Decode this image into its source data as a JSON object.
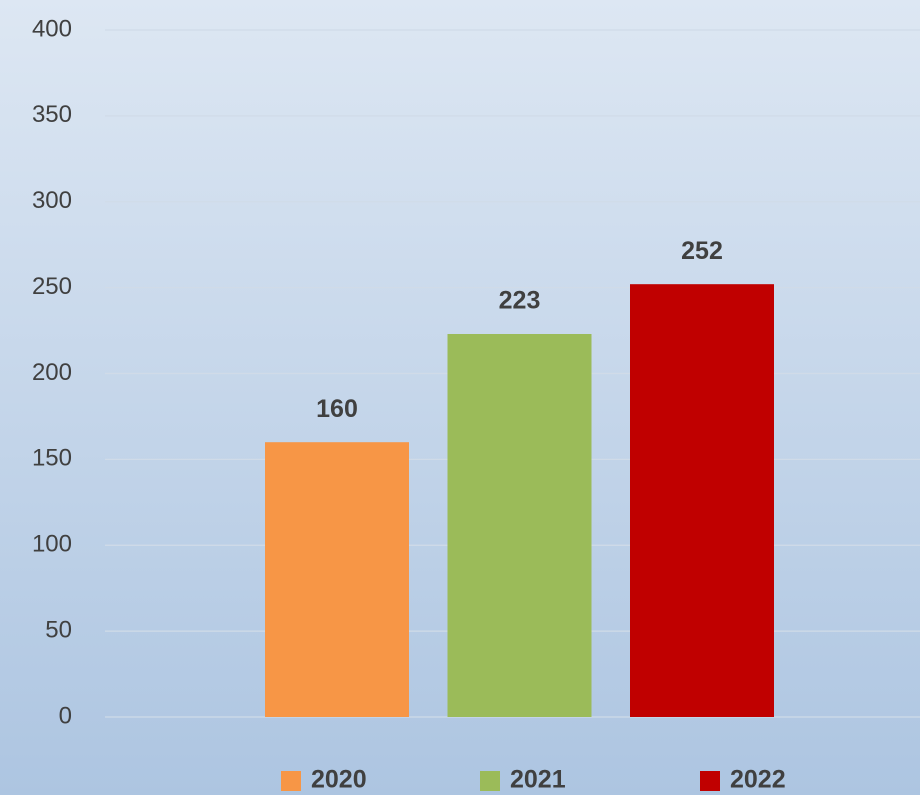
{
  "chart_data": {
    "type": "bar",
    "categories": [
      null
    ],
    "series": [
      {
        "name": "2020",
        "color": "#f79646",
        "values": [
          160
        ]
      },
      {
        "name": "2021",
        "color": "#9bbb59",
        "values": [
          223
        ]
      },
      {
        "name": "2022",
        "color": "#c00000",
        "values": [
          252
        ]
      }
    ],
    "ylim": [
      0,
      400
    ],
    "yticks": [
      0,
      50,
      100,
      150,
      200,
      250,
      300,
      350,
      400
    ],
    "grid": true,
    "legend": "bottom",
    "data_labels": true
  }
}
